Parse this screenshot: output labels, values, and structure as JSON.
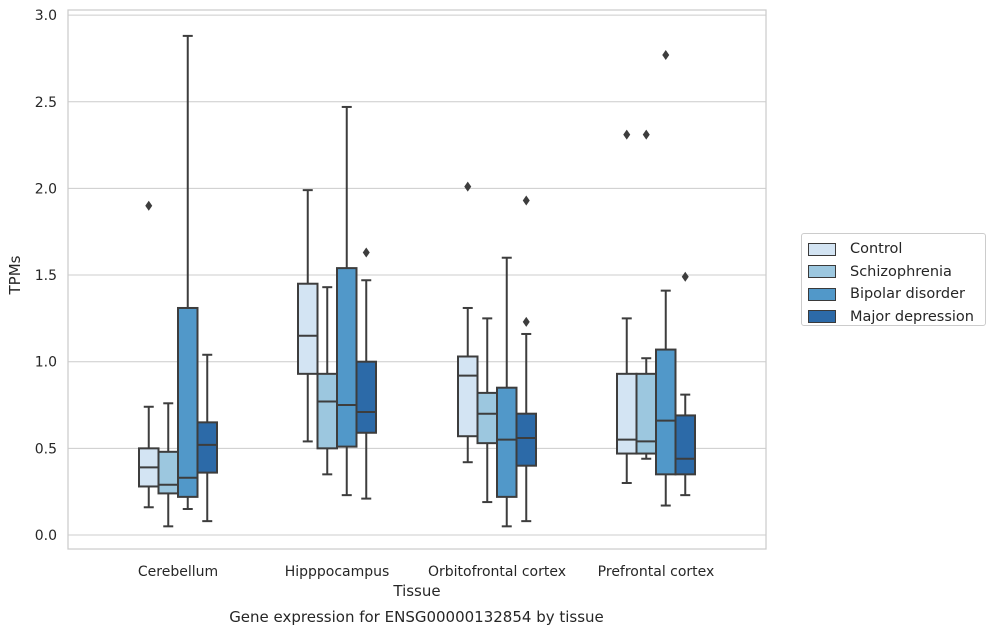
{
  "chart_data": {
    "type": "box",
    "xlabel": "Tissue",
    "ylabel": "TPMs",
    "caption": "Gene expression for ENSG00000132854 by tissue",
    "ylim": [
      -0.08,
      3.03
    ],
    "yticks": [
      "0.0",
      "0.5",
      "1.0",
      "1.5",
      "2.0",
      "2.5",
      "3.0"
    ],
    "grid": true,
    "legend_position": "right",
    "categories": [
      "Cerebellum",
      "Hipppocampus",
      "Orbitofrontal cortex",
      "Prefrontal cortex"
    ],
    "series": [
      {
        "name": "Control",
        "color": "#d3e4f3",
        "boxes": [
          {
            "whislo": 0.16,
            "q1": 0.28,
            "med": 0.39,
            "q3": 0.5,
            "whishi": 0.74,
            "fliers": [
              1.9
            ]
          },
          {
            "whislo": 0.54,
            "q1": 0.93,
            "med": 1.15,
            "q3": 1.45,
            "whishi": 1.99,
            "fliers": []
          },
          {
            "whislo": 0.42,
            "q1": 0.57,
            "med": 0.92,
            "q3": 1.03,
            "whishi": 1.31,
            "fliers": [
              2.01
            ]
          },
          {
            "whislo": 0.3,
            "q1": 0.47,
            "med": 0.55,
            "q3": 0.93,
            "whishi": 1.25,
            "fliers": [
              2.31
            ]
          }
        ]
      },
      {
        "name": "Schizophrenia",
        "color": "#9cc7df",
        "boxes": [
          {
            "whislo": 0.05,
            "q1": 0.24,
            "med": 0.29,
            "q3": 0.48,
            "whishi": 0.76,
            "fliers": []
          },
          {
            "whislo": 0.35,
            "q1": 0.5,
            "med": 0.77,
            "q3": 0.93,
            "whishi": 1.43,
            "fliers": []
          },
          {
            "whislo": 0.19,
            "q1": 0.53,
            "med": 0.7,
            "q3": 0.82,
            "whishi": 1.25,
            "fliers": []
          },
          {
            "whislo": 0.44,
            "q1": 0.47,
            "med": 0.54,
            "q3": 0.93,
            "whishi": 1.02,
            "fliers": [
              2.31
            ]
          }
        ]
      },
      {
        "name": "Bipolar disorder",
        "color": "#5198c9",
        "boxes": [
          {
            "whislo": 0.15,
            "q1": 0.22,
            "med": 0.33,
            "q3": 1.31,
            "whishi": 2.88,
            "fliers": []
          },
          {
            "whislo": 0.23,
            "q1": 0.51,
            "med": 0.75,
            "q3": 1.54,
            "whishi": 2.47,
            "fliers": []
          },
          {
            "whislo": 0.05,
            "q1": 0.22,
            "med": 0.55,
            "q3": 0.85,
            "whishi": 1.6,
            "fliers": []
          },
          {
            "whislo": 0.17,
            "q1": 0.35,
            "med": 0.66,
            "q3": 1.07,
            "whishi": 1.41,
            "fliers": [
              2.77
            ]
          }
        ]
      },
      {
        "name": "Major depression",
        "color": "#2c6aa8",
        "boxes": [
          {
            "whislo": 0.08,
            "q1": 0.36,
            "med": 0.52,
            "q3": 0.65,
            "whishi": 1.04,
            "fliers": []
          },
          {
            "whislo": 0.21,
            "q1": 0.59,
            "med": 0.71,
            "q3": 1.0,
            "whishi": 1.47,
            "fliers": [
              1.63
            ]
          },
          {
            "whislo": 0.08,
            "q1": 0.4,
            "med": 0.56,
            "q3": 0.7,
            "whishi": 1.16,
            "fliers": [
              1.23,
              1.93
            ]
          },
          {
            "whislo": 0.23,
            "q1": 0.35,
            "med": 0.44,
            "q3": 0.69,
            "whishi": 0.81,
            "fliers": [
              1.49
            ]
          }
        ]
      }
    ]
  }
}
